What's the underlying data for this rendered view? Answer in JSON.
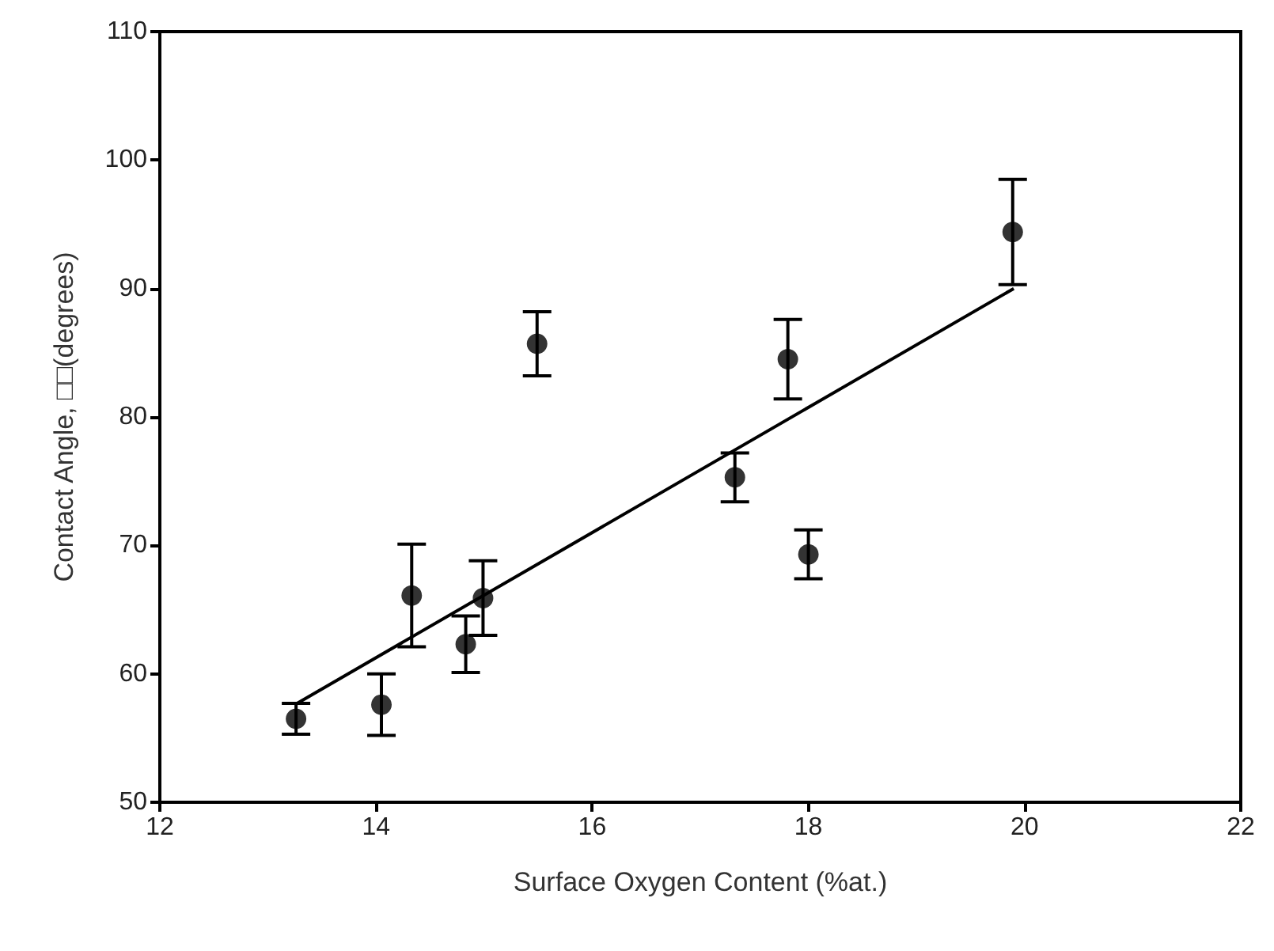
{
  "chart_data": {
    "type": "scatter",
    "xlabel": "Surface Oxygen Content (%at.)",
    "ylabel": "Contact Angle, □□(degrees)",
    "xlim": [
      12,
      22
    ],
    "xticks": [
      12,
      14,
      16,
      18,
      20,
      22
    ],
    "ylim": [
      50,
      110
    ],
    "yticks": [
      50,
      60,
      70,
      80,
      90,
      100,
      110
    ],
    "grid": false,
    "marker": "circle",
    "series": [
      {
        "color": "#000000",
        "x": [
          13.26,
          14.05,
          14.33,
          14.83,
          14.99,
          15.49,
          17.32,
          17.81,
          18.0,
          19.89
        ],
        "values": [
          56.5,
          57.6,
          66.1,
          62.3,
          65.9,
          85.7,
          75.3,
          84.5,
          69.3,
          94.4
        ],
        "errors": [
          1.2,
          2.4,
          4,
          2.2,
          2.9,
          2.5,
          1.9,
          3.1,
          1.9,
          4.1
        ]
      },
      {
        "type": "line",
        "color": "#000000",
        "marker": "none",
        "line_style": "solid",
        "x": [
          13.27,
          19.9
        ],
        "values": [
          57.7,
          90.0
        ]
      }
    ]
  }
}
